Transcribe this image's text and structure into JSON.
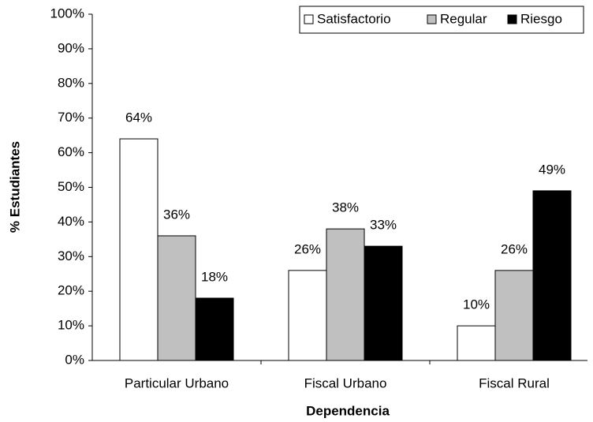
{
  "chart_data": {
    "type": "bar",
    "x_label": "Dependencia",
    "y_label": "% Estudiantes",
    "categories": [
      "Particular Urbano",
      "Fiscal Urbano",
      "Fiscal Rural"
    ],
    "series": [
      {
        "name": "Satisfactorio",
        "color": "#ffffff",
        "values": [
          64,
          26,
          10
        ],
        "value_labels": [
          "64%",
          "26%",
          "10%"
        ]
      },
      {
        "name": "Regular",
        "color": "#c0c0c0",
        "values": [
          36,
          38,
          26
        ],
        "value_labels": [
          "36%",
          "38%",
          "26%"
        ]
      },
      {
        "name": "Riesgo",
        "color": "#000000",
        "values": [
          18,
          33,
          49
        ],
        "value_labels": [
          "18%",
          "33%",
          "49%"
        ]
      }
    ],
    "ylim": [
      0,
      100
    ],
    "yticks": [
      {
        "value": 0,
        "label": "0%"
      },
      {
        "value": 10,
        "label": "10%"
      },
      {
        "value": 20,
        "label": "20%"
      },
      {
        "value": 30,
        "label": "30%"
      },
      {
        "value": 40,
        "label": "40%"
      },
      {
        "value": 50,
        "label": "50%"
      },
      {
        "value": 60,
        "label": "60%"
      },
      {
        "value": 70,
        "label": "70%"
      },
      {
        "value": 80,
        "label": "80%"
      },
      {
        "value": 90,
        "label": "90%"
      },
      {
        "value": 100,
        "label": "100%"
      }
    ],
    "legend": "top-right",
    "grid": false
  }
}
